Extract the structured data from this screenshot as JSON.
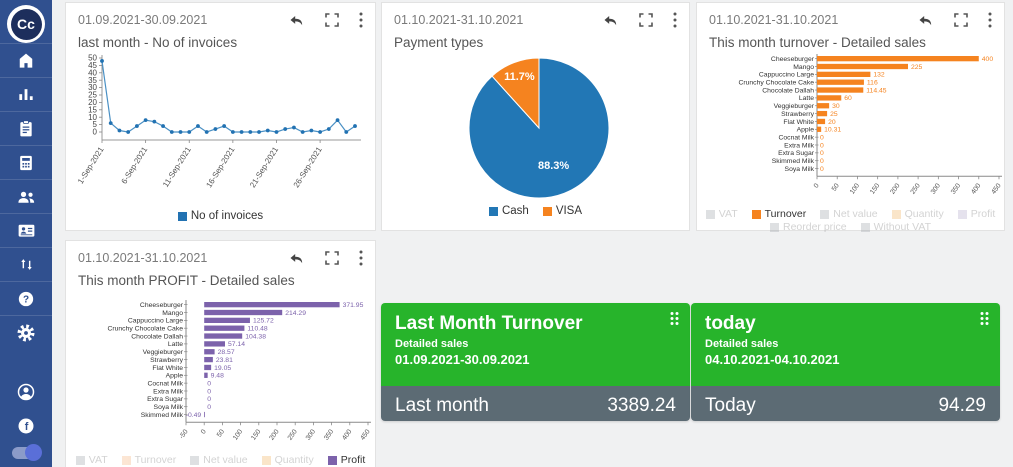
{
  "sidebar": {
    "logo_text": "Cc",
    "nav_icons": [
      "home",
      "bar-chart",
      "clipboard",
      "card-machine",
      "people",
      "contact-card",
      "sort-arrows",
      "help",
      "settings"
    ],
    "bottom_icons": [
      "account",
      "facebook",
      "theme-toggle"
    ]
  },
  "header_icons": [
    "undo",
    "fullscreen",
    "kebab-menu"
  ],
  "colors": {
    "sidebar": "#30508f",
    "blue": "#2277b5",
    "orange": "#f5831f",
    "purple": "#7c62ab",
    "green": "#27b42b",
    "kpi_footer": "#5c6b74"
  },
  "cards": {
    "invoices": {
      "date_range": "01.09.2021-30.09.2021",
      "title": "last month - No of invoices"
    },
    "payments": {
      "date_range": "01.10.2021-31.10.2021",
      "title": "Payment types"
    },
    "turnover": {
      "date_range": "01.10.2021-31.10.2021",
      "title": "This month turnover - Detailed sales"
    },
    "profit": {
      "date_range": "01.10.2021-31.10.2021",
      "title": "This month PROFIT - Detailed sales"
    }
  },
  "kpi_cards": [
    {
      "title": "Last Month Turnover",
      "subtitle": "Detailed sales",
      "date_range": "01.09.2021-30.09.2021",
      "footer_label": "Last month",
      "footer_value": "3389.24",
      "bg": "#27b42b",
      "footer_bg": "#5c6b74"
    },
    {
      "title": "today",
      "subtitle": "Detailed sales",
      "date_range": "04.10.2021-04.10.2021",
      "footer_label": "Today",
      "footer_value": "94.29",
      "bg": "#27b42b",
      "footer_bg": "#5c6b74"
    }
  ],
  "chart_data": [
    {
      "type": "line",
      "title": "last month - No of invoices",
      "series_name": "No of invoices",
      "color": "#2272b2",
      "line_color": "#4a90c4",
      "values": [
        48,
        6,
        1,
        0,
        4,
        8,
        7,
        4,
        0,
        0,
        0,
        4,
        0,
        2,
        4,
        0,
        0,
        0,
        0,
        1,
        0,
        2,
        3,
        0,
        1,
        0,
        2,
        8,
        0,
        4
      ],
      "ylim": [
        0,
        50
      ],
      "y_ticks": [
        0,
        5,
        10,
        15,
        20,
        25,
        30,
        35,
        40,
        45,
        50
      ],
      "x_tick_positions": [
        0,
        5,
        10,
        15,
        20,
        25
      ],
      "x_tick_labels": [
        "1-Sep-2021",
        "6-Sep-2021",
        "11-Sep-2021",
        "16-Sep-2021",
        "21-Sep-2021",
        "26-Sep-2021"
      ],
      "legend": [
        [
          {
            "label": "No of invoices",
            "color": "#2272b2",
            "active": true
          }
        ]
      ]
    },
    {
      "type": "pie",
      "title": "Payment types",
      "slices": [
        {
          "label": "Cash",
          "value": 88.3,
          "display": "88.3%",
          "color": "#2277b5"
        },
        {
          "label": "VISA",
          "value": 11.7,
          "display": "11.7%",
          "color": "#f5831f"
        }
      ],
      "legend": [
        [
          {
            "label": "Cash",
            "color": "#2277b5",
            "active": true
          },
          {
            "label": "VISA",
            "color": "#f5831f",
            "active": true
          }
        ]
      ]
    },
    {
      "type": "bar",
      "title": "This month turnover - Detailed sales",
      "color": "#f5831f",
      "categories": [
        "Cheeseburger",
        "Mango",
        "Cappuccino Large",
        "Crunchy Chocolate Cake",
        "Chocolate Dallah",
        "Latte",
        "Veggieburger",
        "Strawberry",
        "Flat White",
        "Apple",
        "Cocnat Milk",
        "Extra Milk",
        "Extra Sugar",
        "Skimmed Milk",
        "Soya Milk"
      ],
      "values": [
        400,
        225,
        132,
        116,
        114.45,
        60,
        30,
        25,
        20,
        10.31,
        0,
        0,
        0,
        0,
        0
      ],
      "value_labels": [
        "400",
        "225",
        "132",
        "116",
        "114.45",
        "60",
        "30",
        "25",
        "20",
        "10.31",
        "0",
        "0",
        "0",
        "0",
        "0"
      ],
      "xlim": [
        0,
        450
      ],
      "x_ticks": [
        0,
        50,
        100,
        150,
        200,
        250,
        300,
        350,
        400,
        450
      ],
      "legend": [
        [
          {
            "label": "VAT",
            "color": "#9aa0a6",
            "active": false
          },
          {
            "label": "Turnover",
            "color": "#f5831f",
            "active": true
          },
          {
            "label": "Net value",
            "color": "#9aa0a6",
            "active": false
          },
          {
            "label": "Quantity",
            "color": "#f0b05a",
            "active": false
          },
          {
            "label": "Profit",
            "color": "#b0a6c8",
            "active": false
          }
        ],
        [
          {
            "label": "Reorder price",
            "color": "#9aa0a6",
            "active": false
          },
          {
            "label": "Without VAT",
            "color": "#9aa0a6",
            "active": false
          }
        ]
      ]
    },
    {
      "type": "bar",
      "title": "This month PROFIT - Detailed sales",
      "color": "#7c62ab",
      "categories": [
        "Cheeseburger",
        "Mango",
        "Cappuccino Large",
        "Crunchy Chocolate Cake",
        "Chocolate Dallah",
        "Latte",
        "Veggieburger",
        "Strawberry",
        "Flat White",
        "Apple",
        "Cocnat Milk",
        "Extra Milk",
        "Extra Sugar",
        "Soya Milk",
        "Skimmed Milk"
      ],
      "values": [
        371.95,
        214.29,
        125.72,
        110.48,
        104.38,
        57.14,
        28.57,
        23.81,
        19.05,
        9.48,
        0,
        0,
        0,
        0,
        -0.49
      ],
      "value_labels": [
        "371.95",
        "214.29",
        "125.72",
        "110.48",
        "104.38",
        "57.14",
        "28.57",
        "23.81",
        "19.05",
        "9.48",
        "0",
        "0",
        "0",
        "0",
        "-0.49"
      ],
      "xlim": [
        -50,
        450
      ],
      "x_ticks": [
        -50,
        0,
        50,
        100,
        150,
        200,
        250,
        300,
        350,
        400,
        450
      ],
      "legend": [
        [
          {
            "label": "VAT",
            "color": "#9aa0a6",
            "active": false
          },
          {
            "label": "Turnover",
            "color": "#f5b07a",
            "active": false
          },
          {
            "label": "Net value",
            "color": "#9aa0a6",
            "active": false
          },
          {
            "label": "Quantity",
            "color": "#f0b05a",
            "active": false
          },
          {
            "label": "Profit",
            "color": "#7c62ab",
            "active": true
          }
        ]
      ]
    }
  ]
}
